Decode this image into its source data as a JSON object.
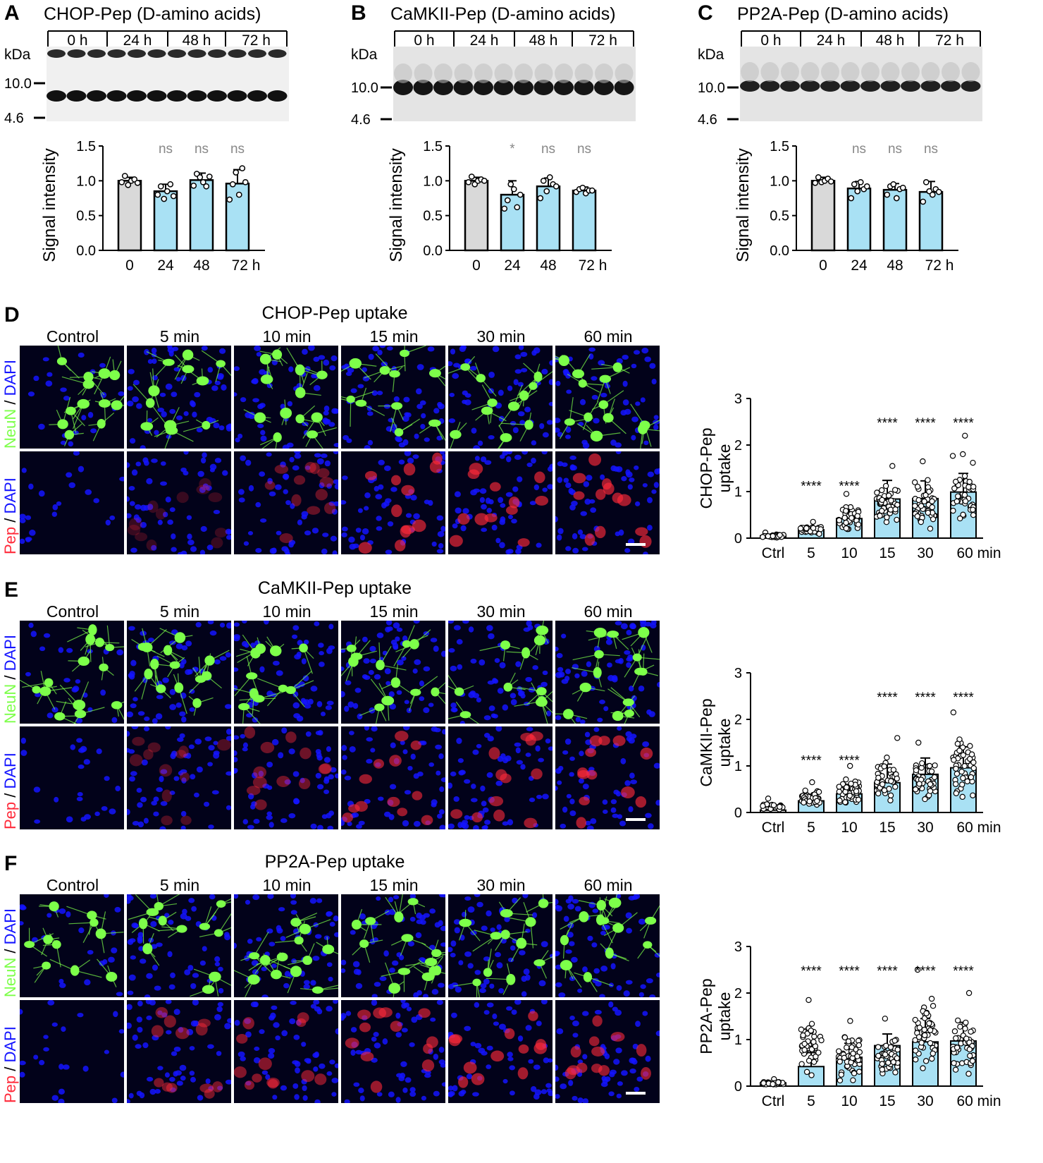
{
  "colors": {
    "bar_control": "#d9d9d9",
    "bar_treated": "#a9e1f4",
    "ns_text": "#888888",
    "neun": "#7dff4a",
    "dapi": "#1414ff",
    "pep": "#ff2a3a",
    "micro_bg": "#02021a"
  },
  "blots": [
    {
      "letter": "A",
      "title": "CHOP-Pep (D-amino acids)",
      "lane_groups": [
        "0 h",
        "24 h",
        "48 h",
        "72 h"
      ],
      "kda_label": "kDa",
      "markers": [
        "10.0",
        "4.6"
      ]
    },
    {
      "letter": "B",
      "title": "CaMKII-Pep (D-amino acids)",
      "lane_groups": [
        "0 h",
        "24 h",
        "48 h",
        "72 h"
      ],
      "kda_label": "kDa",
      "markers": [
        "10.0",
        "4.6"
      ]
    },
    {
      "letter": "C",
      "title": "PP2A-Pep (D-amino acids)",
      "lane_groups": [
        "0 h",
        "24 h",
        "48 h",
        "72 h"
      ],
      "kda_label": "kDa",
      "markers": [
        "10.0",
        "4.6"
      ]
    }
  ],
  "uptake_panels": [
    {
      "letter": "D",
      "title": "CHOP-Pep uptake",
      "columns": [
        "Control",
        "5 min",
        "10 min",
        "15 min",
        "30 min",
        "60 min"
      ],
      "row1_label": {
        "a": "NeuN",
        "b": " / ",
        "c": "DAPI"
      },
      "row2_label": {
        "a": "Pep",
        "b": " / ",
        "c": "DAPI"
      },
      "pep_intensity": [
        0.0,
        0.25,
        0.45,
        0.75,
        0.75,
        0.75
      ]
    },
    {
      "letter": "E",
      "title": "CaMKII-Pep uptake",
      "columns": [
        "Control",
        "5 min",
        "10 min",
        "15 min",
        "30 min",
        "60 min"
      ],
      "row1_label": {
        "a": "NeuN",
        "b": " / ",
        "c": "DAPI"
      },
      "row2_label": {
        "a": "Pep",
        "b": " / ",
        "c": "DAPI"
      },
      "pep_intensity": [
        0.0,
        0.35,
        0.5,
        0.7,
        0.7,
        0.75
      ]
    },
    {
      "letter": "F",
      "title": "PP2A-Pep uptake",
      "columns": [
        "Control",
        "5 min",
        "10 min",
        "15 min",
        "30 min",
        "60 min"
      ],
      "row1_label": {
        "a": "NeuN",
        "b": " / ",
        "c": "DAPI"
      },
      "row2_label": {
        "a": "Pep",
        "b": " / ",
        "c": "DAPI"
      },
      "pep_intensity": [
        0.0,
        0.55,
        0.6,
        0.7,
        0.75,
        0.7
      ]
    }
  ],
  "chart_data": [
    {
      "id": "A",
      "type": "bar",
      "categories": [
        "0",
        "24",
        "48",
        "72 h"
      ],
      "values": [
        1.0,
        0.85,
        1.01,
        0.96
      ],
      "errors": [
        0.05,
        0.1,
        0.1,
        0.2
      ],
      "points": [
        [
          0.98,
          1.07,
          0.94,
          1.0,
          1.02,
          0.97
        ],
        [
          0.8,
          0.92,
          0.74,
          0.85,
          0.95,
          0.78
        ],
        [
          0.93,
          1.1,
          1.05,
          0.98,
          0.92,
          1.06
        ],
        [
          0.73,
          0.95,
          1.12,
          0.8,
          1.18,
          0.98
        ]
      ],
      "annotations": [
        "",
        "ns",
        "ns",
        "ns"
      ],
      "ylabel": "Signal intensity",
      "ylim": [
        0,
        1.5
      ],
      "yticks": [
        "0.0",
        "0.5",
        "1.0",
        "1.5"
      ]
    },
    {
      "id": "B",
      "type": "bar",
      "categories": [
        "0",
        "24",
        "48",
        "72 h"
      ],
      "values": [
        1.0,
        0.8,
        0.92,
        0.86
      ],
      "errors": [
        0.05,
        0.2,
        0.12,
        0.05
      ],
      "points": [
        [
          0.98,
          1.06,
          0.95,
          1.0,
          1.02,
          1.0
        ],
        [
          0.6,
          0.72,
          0.95,
          0.88,
          0.62,
          0.8
        ],
        [
          0.75,
          1.0,
          0.85,
          1.05,
          0.95,
          0.92
        ],
        [
          0.84,
          0.88,
          0.9,
          0.82,
          0.86,
          0.86
        ]
      ],
      "annotations": [
        "",
        "*",
        "ns",
        "ns"
      ],
      "ylabel": "Signal intensity",
      "ylim": [
        0,
        1.5
      ],
      "yticks": [
        "0.0",
        "0.5",
        "1.0",
        "1.5"
      ]
    },
    {
      "id": "C",
      "type": "bar",
      "categories": [
        "0",
        "24",
        "48",
        "72 h"
      ],
      "values": [
        1.0,
        0.89,
        0.87,
        0.84
      ],
      "errors": [
        0.05,
        0.1,
        0.09,
        0.15
      ],
      "points": [
        [
          0.97,
          1.05,
          0.98,
          1.0,
          1.03,
          0.99
        ],
        [
          0.75,
          0.95,
          0.85,
          0.98,
          0.88,
          0.92
        ],
        [
          0.8,
          0.92,
          0.95,
          0.75,
          0.88,
          0.9
        ],
        [
          0.7,
          0.98,
          0.85,
          0.8,
          0.88,
          0.84
        ]
      ],
      "annotations": [
        "",
        "ns",
        "ns",
        "ns"
      ],
      "ylabel": "Signal intensity",
      "ylim": [
        0,
        1.5
      ],
      "yticks": [
        "0.0",
        "0.5",
        "1.0",
        "1.5"
      ]
    },
    {
      "id": "D",
      "type": "bar",
      "categories": [
        "Ctrl",
        "5",
        "10",
        "15",
        "30",
        "60 min"
      ],
      "values": [
        0.05,
        0.18,
        0.42,
        0.84,
        0.85,
        0.99
      ],
      "errors": [
        0.03,
        0.06,
        0.2,
        0.4,
        0.38,
        0.4
      ],
      "spread": [
        [
          0.0,
          0.12
        ],
        [
          0.05,
          0.35
        ],
        [
          0.05,
          0.95
        ],
        [
          0.05,
          1.55
        ],
        [
          0.05,
          1.65
        ],
        [
          0.05,
          2.2
        ]
      ],
      "n_points": [
        25,
        35,
        40,
        45,
        45,
        45
      ],
      "annotations": [
        "",
        "****",
        "****",
        "****",
        "****",
        "****"
      ],
      "ylabel": "CHOP-Pep uptake",
      "ylim": [
        0,
        3
      ],
      "yticks": [
        "0",
        "1",
        "2",
        "3"
      ]
    },
    {
      "id": "E",
      "type": "bar",
      "categories": [
        "Ctrl",
        "5",
        "10",
        "15",
        "30",
        "60 min"
      ],
      "values": [
        0.05,
        0.25,
        0.4,
        0.64,
        0.82,
        0.96
      ],
      "errors": [
        0.05,
        0.12,
        0.2,
        0.4,
        0.35,
        0.45
      ],
      "spread": [
        [
          0.0,
          0.3
        ],
        [
          0.05,
          0.65
        ],
        [
          0.05,
          1.0
        ],
        [
          0.05,
          1.6
        ],
        [
          0.05,
          1.5
        ],
        [
          0.05,
          2.15
        ]
      ],
      "n_points": [
        25,
        40,
        45,
        45,
        45,
        45
      ],
      "annotations": [
        "",
        "****",
        "****",
        "****",
        "****",
        "****"
      ],
      "ylabel": "CaMKII-Pep uptake",
      "ylim": [
        0,
        3
      ],
      "yticks": [
        "0",
        "1",
        "2",
        "3"
      ]
    },
    {
      "id": "F",
      "type": "bar",
      "categories": [
        "Ctrl",
        "5",
        "10",
        "15",
        "30",
        "60 min"
      ],
      "values": [
        0.07,
        0.42,
        0.62,
        0.87,
        0.95,
        0.97
      ],
      "errors": [
        0.04,
        0.3,
        0.3,
        0.25,
        0.5,
        0.4
      ],
      "spread": [
        [
          0.0,
          0.15
        ],
        [
          0.05,
          1.85
        ],
        [
          0.05,
          1.4
        ],
        [
          0.05,
          1.45
        ],
        [
          0.05,
          2.5
        ],
        [
          0.05,
          2.0
        ]
      ],
      "n_points": [
        25,
        45,
        50,
        45,
        50,
        45
      ],
      "annotations": [
        "",
        "****",
        "****",
        "****",
        "****",
        "****"
      ],
      "ylabel": "PP2A-Pep uptake",
      "ylim": [
        0,
        3
      ],
      "yticks": [
        "0",
        "1",
        "2",
        "3"
      ]
    }
  ]
}
